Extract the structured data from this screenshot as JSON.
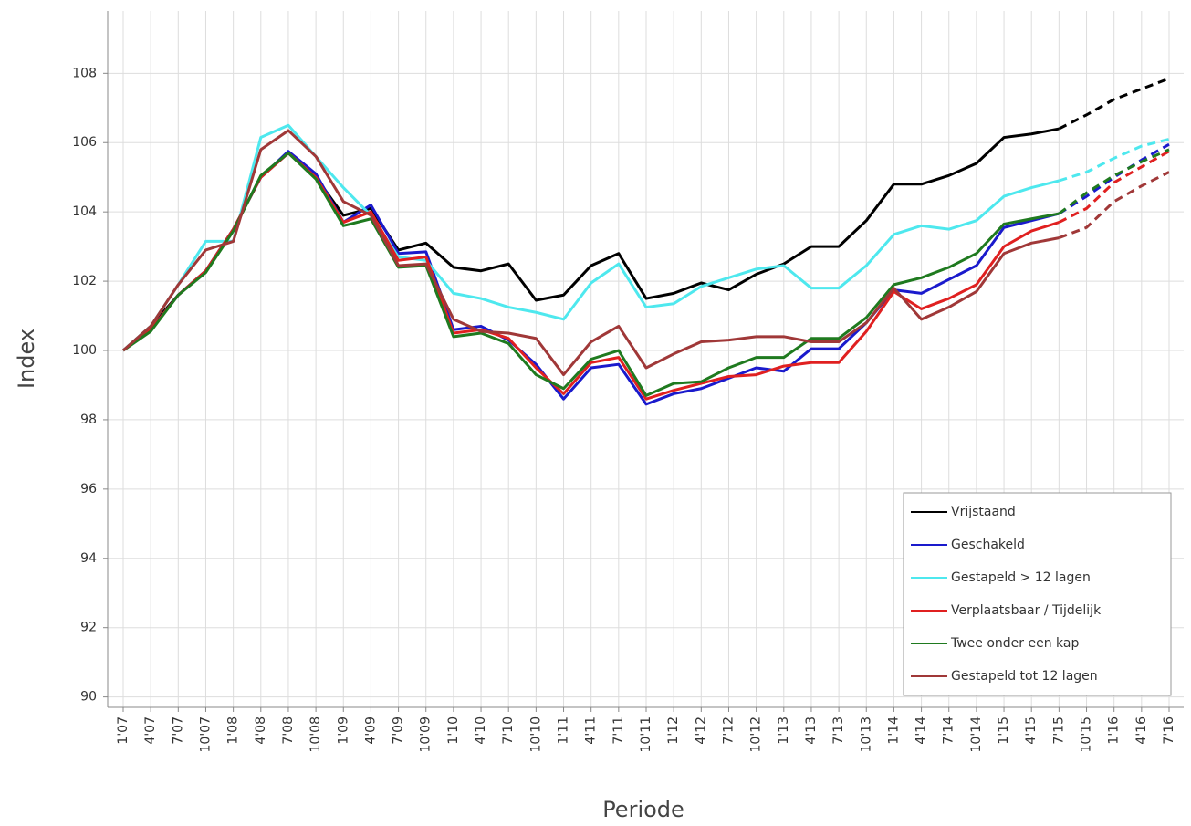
{
  "chart_data": {
    "type": "line",
    "xlabel": "Periode",
    "ylabel": "Index",
    "categories": [
      "1'07",
      "4'07",
      "7'07",
      "10'07",
      "1'08",
      "4'08",
      "7'08",
      "10'08",
      "1'09",
      "4'09",
      "7'09",
      "10'09",
      "1'10",
      "4'10",
      "7'10",
      "10'10",
      "1'11",
      "4'11",
      "7'11",
      "10'11",
      "1'12",
      "4'12",
      "7'12",
      "10'12",
      "1'13",
      "4'13",
      "7'13",
      "10'13",
      "1'14",
      "4'14",
      "7'14",
      "10'14",
      "1'15",
      "4'15",
      "7'15",
      "10'15",
      "1'16",
      "4'16",
      "7'16"
    ],
    "projection_from": "7'15",
    "ylim": [
      89.7,
      109.8
    ],
    "yticks": [
      90,
      92,
      94,
      96,
      98,
      100,
      102,
      104,
      106,
      108
    ],
    "grid": true,
    "legend": "lower right",
    "series": [
      {
        "name": "Vrijstaand",
        "color": "#000000",
        "values": [
          100,
          100.7,
          101.6,
          102.3,
          103.5,
          105.0,
          105.7,
          105.0,
          103.9,
          104.1,
          102.9,
          103.1,
          102.4,
          102.3,
          102.5,
          101.45,
          101.6,
          102.45,
          102.8,
          101.5,
          101.65,
          101.95,
          101.75,
          102.2,
          102.5,
          103.0,
          103.0,
          103.75,
          104.8,
          104.8,
          105.05,
          105.4,
          106.15,
          106.25,
          106.4,
          106.8,
          107.25,
          107.55,
          107.85
        ]
      },
      {
        "name": "Geschakeld",
        "color": "#1a1acc",
        "values": [
          100,
          100.6,
          101.6,
          102.3,
          103.5,
          105.0,
          105.75,
          105.1,
          103.7,
          104.2,
          102.8,
          102.85,
          100.6,
          100.7,
          100.3,
          99.6,
          98.6,
          99.5,
          99.6,
          98.45,
          98.75,
          98.9,
          99.2,
          99.5,
          99.4,
          100.05,
          100.05,
          100.8,
          101.75,
          101.65,
          102.05,
          102.45,
          103.55,
          103.75,
          103.95,
          104.45,
          105.0,
          105.5,
          105.95
        ]
      },
      {
        "name": "Gestapeld > 12 lagen",
        "color": "#4ee8ee",
        "values": [
          100,
          100.7,
          101.9,
          103.15,
          103.15,
          106.15,
          106.5,
          105.6,
          104.7,
          103.9,
          102.7,
          102.6,
          101.65,
          101.5,
          101.25,
          101.1,
          100.9,
          101.95,
          102.5,
          101.25,
          101.35,
          101.85,
          102.1,
          102.35,
          102.45,
          101.8,
          101.8,
          102.45,
          103.35,
          103.6,
          103.5,
          103.75,
          104.45,
          104.7,
          104.9,
          105.15,
          105.55,
          105.9,
          106.1
        ]
      },
      {
        "name": "Verplaatsbaar / Tijdelijk",
        "color": "#e02020",
        "values": [
          100,
          100.6,
          101.6,
          102.3,
          103.5,
          105.0,
          105.7,
          105.0,
          103.7,
          104.0,
          102.6,
          102.7,
          100.5,
          100.6,
          100.35,
          99.5,
          98.75,
          99.65,
          99.8,
          98.6,
          98.85,
          99.05,
          99.25,
          99.3,
          99.55,
          99.65,
          99.65,
          100.55,
          101.7,
          101.2,
          101.5,
          101.9,
          103.0,
          103.45,
          103.7,
          104.1,
          104.85,
          105.3,
          105.75
        ]
      },
      {
        "name": "Twee onder een kap",
        "color": "#1f7a1f",
        "values": [
          100,
          100.55,
          101.6,
          102.25,
          103.45,
          105.05,
          105.7,
          104.95,
          103.6,
          103.8,
          102.4,
          102.45,
          100.4,
          100.5,
          100.2,
          99.3,
          98.9,
          99.75,
          100.0,
          98.7,
          99.05,
          99.1,
          99.5,
          99.8,
          99.8,
          100.35,
          100.35,
          100.95,
          101.9,
          102.1,
          102.4,
          102.8,
          103.65,
          103.8,
          103.95,
          104.55,
          105.05,
          105.45,
          105.8
        ]
      },
      {
        "name": "Gestapeld tot 12 lagen",
        "color": "#a03838",
        "values": [
          100,
          100.7,
          101.9,
          102.9,
          103.15,
          105.8,
          106.35,
          105.6,
          104.3,
          103.9,
          102.45,
          102.5,
          100.9,
          100.55,
          100.5,
          100.35,
          99.3,
          100.25,
          100.7,
          99.5,
          99.9,
          100.25,
          100.3,
          100.4,
          100.4,
          100.25,
          100.25,
          100.8,
          101.8,
          100.9,
          101.25,
          101.7,
          102.8,
          103.1,
          103.25,
          103.55,
          104.3,
          104.75,
          105.15
        ]
      }
    ]
  }
}
